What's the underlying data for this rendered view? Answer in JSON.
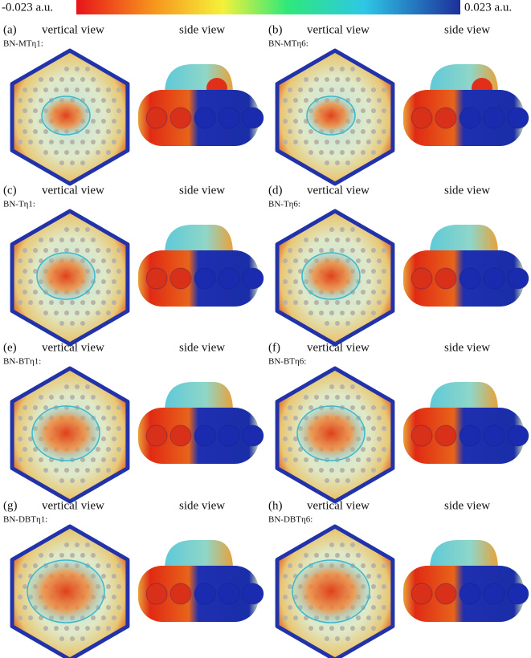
{
  "colorbar": {
    "min_label": "-0.023 a.u.",
    "max_label": "0.023 a.u."
  },
  "panels": [
    {
      "letter": "(a)",
      "name": "BN-MTη1:",
      "vertical_label": "vertical view",
      "side_label": "side view"
    },
    {
      "letter": "(b)",
      "name": "BN-MTη6:",
      "vertical_label": "vertical view",
      "side_label": "side view"
    },
    {
      "letter": "(c)",
      "name": "BN-Tη1:",
      "vertical_label": "vertical view",
      "side_label": "side view"
    },
    {
      "letter": "(d)",
      "name": "BN-Tη6:",
      "vertical_label": "vertical view",
      "side_label": "side view"
    },
    {
      "letter": "(e)",
      "name": "BN-BTη1:",
      "vertical_label": "vertical view",
      "side_label": "side view"
    },
    {
      "letter": "(f)",
      "name": "BN-BTη6:",
      "vertical_label": "vertical view",
      "side_label": "side view"
    },
    {
      "letter": "(g)",
      "name": "BN-DBTη1:",
      "vertical_label": "vertical view",
      "side_label": "side view"
    },
    {
      "letter": "(h)",
      "name": "BN-DBTη6:",
      "vertical_label": "vertical view",
      "side_label": "side view"
    }
  ]
}
